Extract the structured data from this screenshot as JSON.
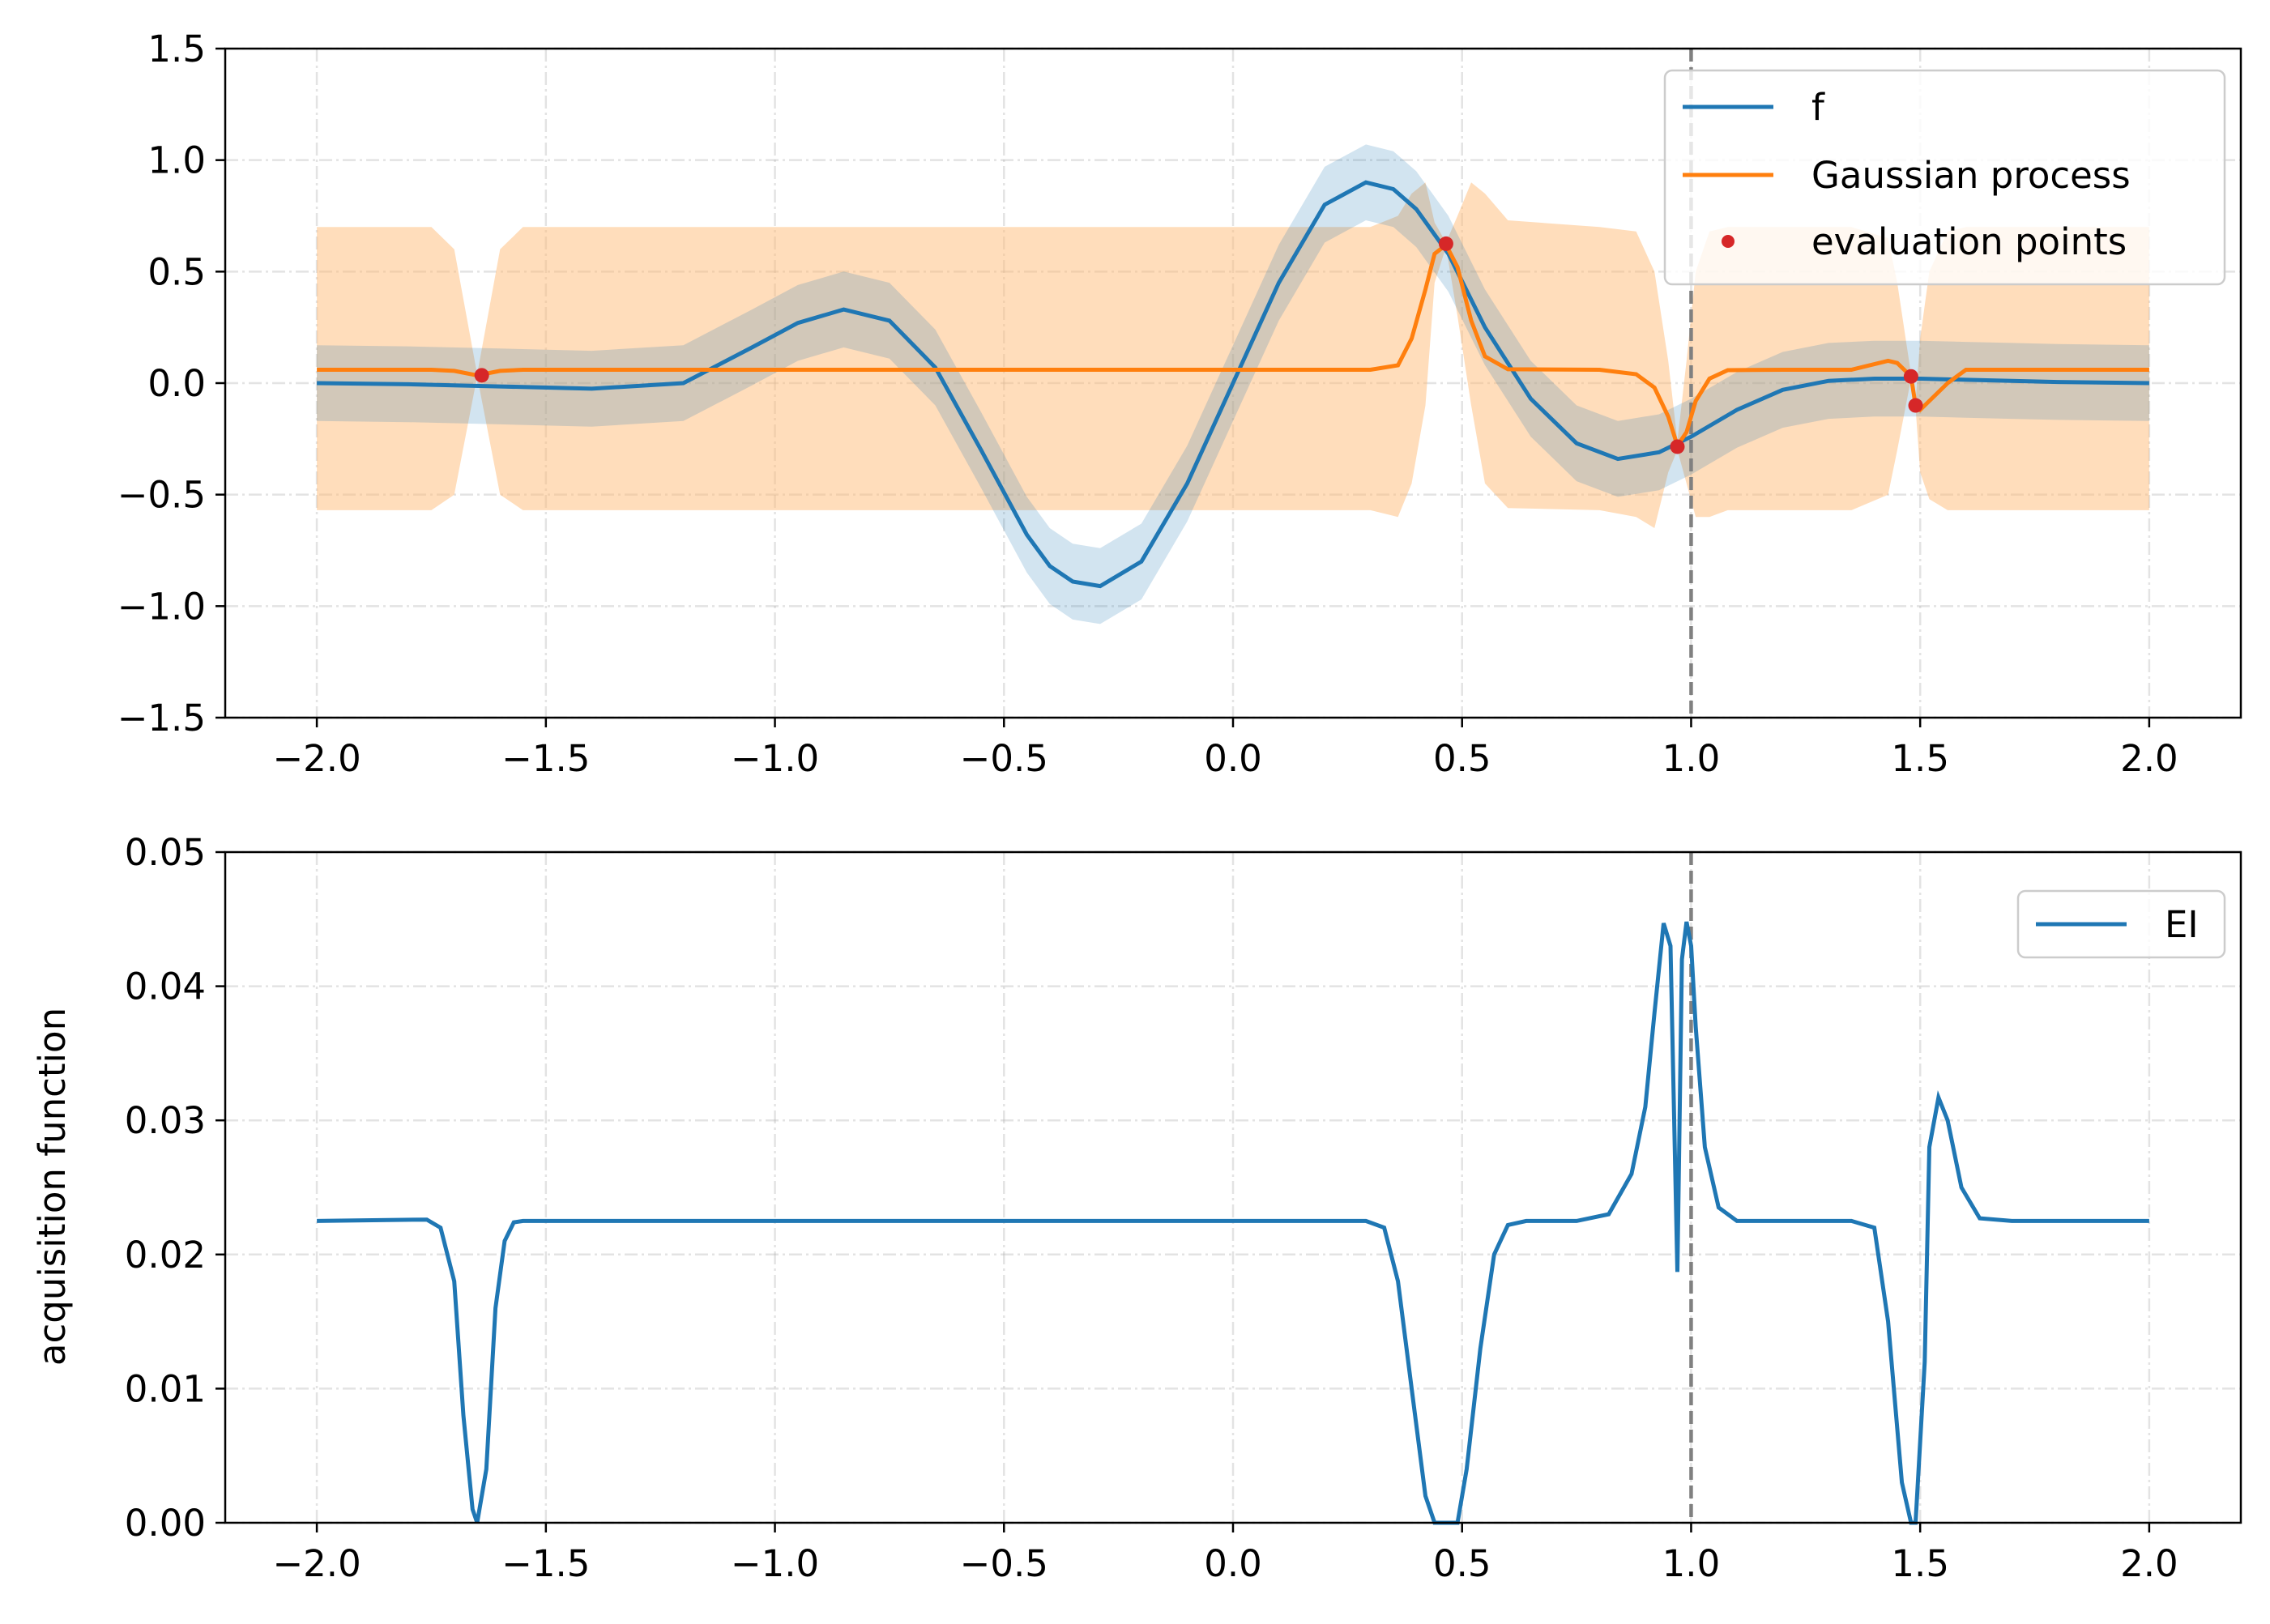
{
  "chart_data": [
    {
      "type": "line",
      "panel": "top",
      "title": "",
      "xlabel": "",
      "ylabel": "",
      "xlim": [
        -2.2,
        2.2
      ],
      "ylim": [
        -1.5,
        1.5
      ],
      "xticks": [
        -2.0,
        -1.5,
        -1.0,
        -0.5,
        0.0,
        0.5,
        1.0,
        1.5,
        2.0
      ],
      "xtick_labels": [
        "−2.0",
        "−1.5",
        "−1.0",
        "−0.5",
        "0.0",
        "0.5",
        "1.0",
        "1.5",
        "2.0"
      ],
      "yticks": [
        -1.5,
        -1.0,
        -0.5,
        0.0,
        0.5,
        1.0,
        1.5
      ],
      "ytick_labels": [
        "−1.5",
        "−1.0",
        "−0.5",
        "0.0",
        "0.5",
        "1.0",
        "1.5"
      ],
      "grid": true,
      "vline_x": 1.0,
      "legend_position": "top-right",
      "series": [
        {
          "name": "f",
          "color": "#1f77b4",
          "band_color": "#1f77b4",
          "band_halfwidth": 0.17,
          "x": [
            -2.0,
            -1.8,
            -1.6,
            -1.4,
            -1.2,
            -1.05,
            -0.95,
            -0.85,
            -0.75,
            -0.65,
            -0.55,
            -0.45,
            -0.4,
            -0.35,
            -0.29,
            -0.2,
            -0.1,
            0.0,
            0.1,
            0.2,
            0.29,
            0.35,
            0.4,
            0.47,
            0.55,
            0.65,
            0.75,
            0.84,
            0.93,
            1.0,
            1.1,
            1.2,
            1.3,
            1.4,
            1.5,
            1.6,
            1.7,
            1.8,
            2.0
          ],
          "y": [
            0.0,
            -0.005,
            -0.015,
            -0.025,
            0.0,
            0.16,
            0.27,
            0.33,
            0.28,
            0.07,
            -0.3,
            -0.68,
            -0.82,
            -0.89,
            -0.91,
            -0.8,
            -0.45,
            0.0,
            0.45,
            0.8,
            0.9,
            0.87,
            0.78,
            0.58,
            0.25,
            -0.07,
            -0.27,
            -0.34,
            -0.31,
            -0.24,
            -0.12,
            -0.03,
            0.01,
            0.02,
            0.02,
            0.015,
            0.01,
            0.005,
            0.0
          ]
        },
        {
          "name": "Gaussian process",
          "color": "#ff7f0e",
          "band_color": "#ffbb78",
          "x": [
            -2.0,
            -1.75,
            -1.7,
            -1.65,
            -1.6,
            -1.55,
            -1.5,
            0.3,
            0.36,
            0.39,
            0.42,
            0.44,
            0.465,
            0.49,
            0.52,
            0.55,
            0.6,
            0.8,
            0.88,
            0.92,
            0.95,
            0.97,
            0.99,
            1.01,
            1.04,
            1.08,
            1.2,
            1.35,
            1.43,
            1.45,
            1.48,
            1.49,
            1.5,
            1.52,
            1.56,
            1.6,
            2.0
          ],
          "y": [
            0.06,
            0.06,
            0.055,
            0.035,
            0.055,
            0.06,
            0.06,
            0.06,
            0.08,
            0.2,
            0.42,
            0.58,
            0.62,
            0.52,
            0.28,
            0.12,
            0.062,
            0.06,
            0.04,
            -0.02,
            -0.15,
            -0.28,
            -0.22,
            -0.08,
            0.02,
            0.058,
            0.06,
            0.06,
            0.1,
            0.09,
            0.03,
            -0.1,
            -0.12,
            -0.08,
            0.0,
            0.06,
            0.06
          ],
          "upper": [
            0.7,
            0.7,
            0.6,
            0.04,
            0.6,
            0.7,
            0.7,
            0.7,
            0.75,
            0.85,
            0.9,
            0.72,
            0.63,
            0.75,
            0.9,
            0.85,
            0.73,
            0.7,
            0.68,
            0.5,
            0.1,
            -0.26,
            0.1,
            0.5,
            0.68,
            0.7,
            0.7,
            0.7,
            0.65,
            0.45,
            0.04,
            -0.09,
            0.2,
            0.5,
            0.68,
            0.7,
            0.7
          ],
          "lower": [
            -0.57,
            -0.57,
            -0.5,
            0.03,
            -0.5,
            -0.57,
            -0.57,
            -0.57,
            -0.6,
            -0.45,
            -0.1,
            0.45,
            0.61,
            0.3,
            -0.1,
            -0.45,
            -0.56,
            -0.57,
            -0.6,
            -0.65,
            -0.4,
            -0.3,
            -0.45,
            -0.6,
            -0.6,
            -0.57,
            -0.57,
            -0.57,
            -0.5,
            -0.3,
            0.02,
            -0.11,
            -0.4,
            -0.52,
            -0.57,
            -0.57,
            -0.57
          ]
        },
        {
          "name": "evaluation points",
          "color": "#d62728",
          "marker": "dot",
          "x": [
            -1.64,
            0.465,
            0.97,
            1.48,
            1.49
          ],
          "y": [
            0.035,
            0.625,
            -0.285,
            0.03,
            -0.1
          ]
        }
      ]
    },
    {
      "type": "line",
      "panel": "bottom",
      "title": "",
      "xlabel": "",
      "ylabel": "acquisition function",
      "xlim": [
        -2.2,
        2.2
      ],
      "ylim": [
        0.0,
        0.05
      ],
      "xticks": [
        -2.0,
        -1.5,
        -1.0,
        -0.5,
        0.0,
        0.5,
        1.0,
        1.5,
        2.0
      ],
      "xtick_labels": [
        "−2.0",
        "−1.5",
        "−1.0",
        "−0.5",
        "0.0",
        "0.5",
        "1.0",
        "1.5",
        "2.0"
      ],
      "yticks": [
        0.0,
        0.01,
        0.02,
        0.03,
        0.04,
        0.05
      ],
      "ytick_labels": [
        "0.00",
        "0.01",
        "0.02",
        "0.03",
        "0.04",
        "0.05"
      ],
      "grid": true,
      "vline_x": 1.0,
      "legend_position": "top-right",
      "series": [
        {
          "name": "EI",
          "color": "#1f77b4",
          "x": [
            -2.0,
            -1.76,
            -1.73,
            -1.7,
            -1.68,
            -1.66,
            -1.65,
            -1.63,
            -1.61,
            -1.59,
            -1.57,
            -1.55,
            -1.52,
            0.29,
            0.33,
            0.36,
            0.39,
            0.42,
            0.44,
            0.46,
            0.49,
            0.51,
            0.54,
            0.57,
            0.6,
            0.64,
            0.75,
            0.82,
            0.87,
            0.9,
            0.92,
            0.94,
            0.955,
            0.97,
            0.98,
            0.99,
            1.0,
            1.01,
            1.03,
            1.06,
            1.1,
            1.15,
            1.2,
            1.35,
            1.4,
            1.43,
            1.46,
            1.48,
            1.49,
            1.51,
            1.52,
            1.54,
            1.56,
            1.59,
            1.63,
            1.7,
            2.0
          ],
          "y": [
            0.0225,
            0.0226,
            0.022,
            0.018,
            0.008,
            0.001,
            0.0,
            0.004,
            0.016,
            0.021,
            0.0224,
            0.0225,
            0.0225,
            0.0225,
            0.022,
            0.018,
            0.01,
            0.002,
            0.0,
            0.0,
            0.0,
            0.004,
            0.013,
            0.02,
            0.0222,
            0.0225,
            0.0225,
            0.023,
            0.026,
            0.031,
            0.038,
            0.0447,
            0.043,
            0.0187,
            0.042,
            0.0448,
            0.043,
            0.037,
            0.028,
            0.0235,
            0.0225,
            0.0225,
            0.0225,
            0.0225,
            0.022,
            0.015,
            0.003,
            0.0,
            0.0,
            0.012,
            0.028,
            0.0317,
            0.03,
            0.025,
            0.0227,
            0.0225,
            0.0225
          ]
        }
      ]
    }
  ]
}
